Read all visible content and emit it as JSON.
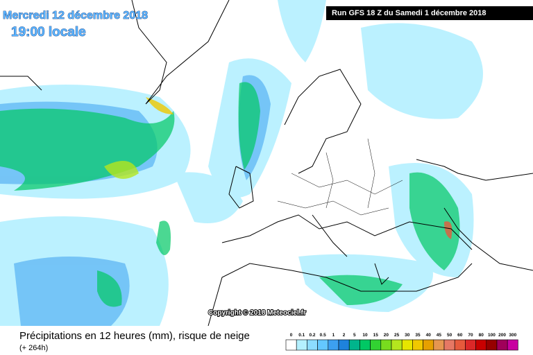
{
  "header": {
    "date": "Mercredi 12 décembre 2018",
    "time": "19:00 locale",
    "run": "Run GFS 18 Z du Samedi 1 décembre 2018"
  },
  "map": {
    "copyright": "Copyright © 2018 Meteociel.fr"
  },
  "footer": {
    "title": "Précipitations en 12 heures (mm), risque de neige",
    "lead": "(+ 264h)"
  },
  "legend": {
    "labels": [
      "0",
      "0.1",
      "0.2",
      "0.5",
      "1",
      "2",
      "5",
      "10",
      "15",
      "20",
      "25",
      "30",
      "35",
      "40",
      "45",
      "50",
      "60",
      "70",
      "80",
      "100",
      "200",
      "300"
    ],
    "colors": [
      "#ffffff",
      "#b4f0ff",
      "#8cdcff",
      "#64c8ff",
      "#3ca0f0",
      "#1e82dc",
      "#00b48c",
      "#00c864",
      "#32d232",
      "#78dc1e",
      "#b4e61e",
      "#e6e600",
      "#f0c800",
      "#e6a000",
      "#e69650",
      "#e67864",
      "#e65a3c",
      "#dc2828",
      "#c80000",
      "#960000",
      "#a0005a",
      "#c800a0"
    ]
  }
}
